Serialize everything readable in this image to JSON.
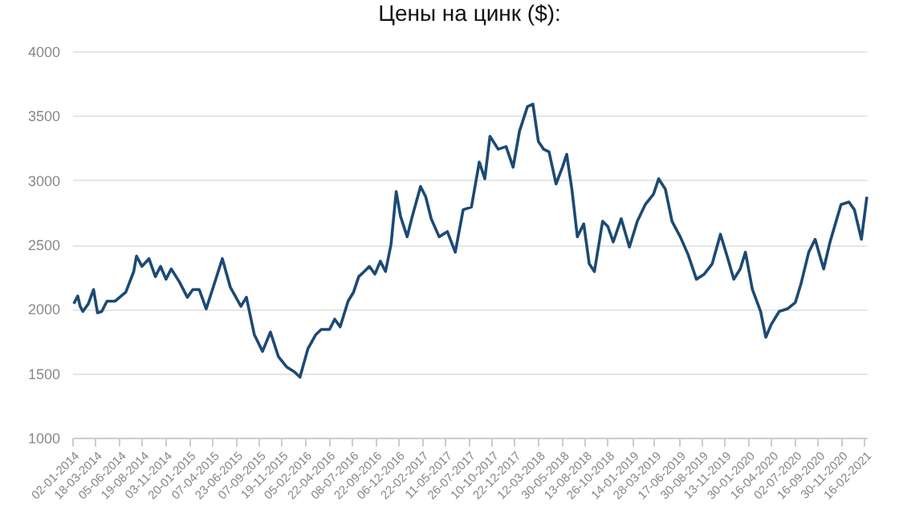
{
  "chart_data": {
    "type": "line",
    "title": "Цены на цинк ($):",
    "x": [
      "2014-01-07",
      "2014-01-20",
      "2014-01-28",
      "2014-02-06",
      "2014-02-24",
      "2014-03-13",
      "2014-03-26",
      "2014-04-09",
      "2014-04-26",
      "2014-05-23",
      "2014-06-27",
      "2014-07-23",
      "2014-08-01",
      "2014-08-19",
      "2014-09-11",
      "2014-10-02",
      "2014-10-19",
      "2014-11-06",
      "2014-11-23",
      "2014-12-20",
      "2015-01-15",
      "2015-02-02",
      "2015-02-23",
      "2015-03-18",
      "2015-04-13",
      "2015-05-10",
      "2015-06-05",
      "2015-07-10",
      "2015-07-28",
      "2015-08-23",
      "2015-09-19",
      "2015-10-15",
      "2015-11-10",
      "2015-12-07",
      "2016-01-02",
      "2016-01-20",
      "2016-02-15",
      "2016-03-12",
      "2016-03-30",
      "2016-04-26",
      "2016-05-13",
      "2016-05-31",
      "2016-06-26",
      "2016-07-14",
      "2016-07-31",
      "2016-08-18",
      "2016-09-04",
      "2016-09-22",
      "2016-10-10",
      "2016-10-27",
      "2016-11-14",
      "2016-12-01",
      "2016-12-15",
      "2017-01-06",
      "2017-01-23",
      "2017-02-19",
      "2017-03-08",
      "2017-03-26",
      "2017-04-21",
      "2017-05-18",
      "2017-06-13",
      "2017-07-09",
      "2017-08-05",
      "2017-08-31",
      "2017-09-18",
      "2017-10-05",
      "2017-11-01",
      "2017-11-27",
      "2017-12-20",
      "2018-01-10",
      "2018-02-05",
      "2018-02-23",
      "2018-03-13",
      "2018-03-30",
      "2018-04-17",
      "2018-05-10",
      "2018-05-31",
      "2018-06-14",
      "2018-07-01",
      "2018-07-19",
      "2018-08-09",
      "2018-08-27",
      "2018-09-13",
      "2018-10-10",
      "2018-10-27",
      "2018-11-14",
      "2018-12-10",
      "2019-01-06",
      "2019-02-01",
      "2019-02-27",
      "2019-03-26",
      "2019-04-12",
      "2019-05-04",
      "2019-05-26",
      "2019-06-22",
      "2019-07-18",
      "2019-08-14",
      "2019-09-09",
      "2019-10-05",
      "2019-11-01",
      "2019-11-24",
      "2019-12-15",
      "2020-01-05",
      "2020-01-22",
      "2020-02-14",
      "2020-03-12",
      "2020-03-29",
      "2020-04-16",
      "2020-05-12",
      "2020-06-08",
      "2020-07-04",
      "2020-07-22",
      "2020-08-17",
      "2020-09-07",
      "2020-10-05",
      "2020-10-26",
      "2020-12-01",
      "2020-12-27",
      "2021-01-14",
      "2021-02-06",
      "2021-02-24"
    ],
    "series": [
      {
        "color": "#1c4a74",
        "values": [
          2040,
          2100,
          2020,
          1980,
          2040,
          2150,
          1970,
          1980,
          2060,
          2060,
          2130,
          2290,
          2410,
          2330,
          2390,
          2250,
          2330,
          2230,
          2310,
          2210,
          2090,
          2150,
          2150,
          2000,
          2190,
          2390,
          2170,
          2020,
          2090,
          1800,
          1670,
          1820,
          1630,
          1550,
          1510,
          1470,
          1690,
          1800,
          1840,
          1840,
          1920,
          1860,
          2060,
          2130,
          2250,
          2290,
          2330,
          2270,
          2370,
          2290,
          2500,
          2910,
          2720,
          2560,
          2720,
          2950,
          2870,
          2700,
          2560,
          2600,
          2440,
          2770,
          2790,
          3140,
          3010,
          3340,
          3240,
          3260,
          3100,
          3380,
          3570,
          3590,
          3300,
          3240,
          3220,
          2970,
          3100,
          3200,
          2930,
          2560,
          2660,
          2350,
          2290,
          2680,
          2640,
          2520,
          2700,
          2480,
          2680,
          2810,
          2890,
          3010,
          2930,
          2680,
          2560,
          2420,
          2230,
          2270,
          2350,
          2580,
          2400,
          2230,
          2310,
          2440,
          2150,
          1980,
          1780,
          1880,
          1980,
          2000,
          2050,
          2190,
          2440,
          2540,
          2310,
          2520,
          2810,
          2830,
          2770,
          2540,
          2870
        ]
      }
    ],
    "xlim": [
      "2014-01-02",
      "2021-02-24"
    ],
    "xticks": [
      {
        "value": "2014-01-02",
        "label": "02-01-2014"
      },
      {
        "value": "2014-03-18",
        "label": "18-03-2014"
      },
      {
        "value": "2014-06-05",
        "label": "05-06-2014"
      },
      {
        "value": "2014-08-19",
        "label": "19-08-2014"
      },
      {
        "value": "2014-11-03",
        "label": "03-11-2014"
      },
      {
        "value": "2015-01-20",
        "label": "20-01-2015"
      },
      {
        "value": "2015-04-07",
        "label": "07-04-2015"
      },
      {
        "value": "2015-06-23",
        "label": "23-06-2015"
      },
      {
        "value": "2015-09-07",
        "label": "07-09-2015"
      },
      {
        "value": "2015-11-19",
        "label": "19-11-2015"
      },
      {
        "value": "2016-02-05",
        "label": "05-02-2016"
      },
      {
        "value": "2016-04-22",
        "label": "22-04-2016"
      },
      {
        "value": "2016-07-08",
        "label": "08-07-2016"
      },
      {
        "value": "2016-09-22",
        "label": "22-09-2016"
      },
      {
        "value": "2016-12-06",
        "label": "06-12-2016"
      },
      {
        "value": "2017-02-22",
        "label": "22-02-2017"
      },
      {
        "value": "2017-05-11",
        "label": "11-05-2017"
      },
      {
        "value": "2017-07-26",
        "label": "26-07-2017"
      },
      {
        "value": "2017-10-10",
        "label": "10-10-2017"
      },
      {
        "value": "2017-12-22",
        "label": "22-12-2017"
      },
      {
        "value": "2018-03-12",
        "label": "12-03-2018"
      },
      {
        "value": "2018-05-30",
        "label": "30-05-2018"
      },
      {
        "value": "2018-08-13",
        "label": "13-08-2018"
      },
      {
        "value": "2018-10-26",
        "label": "26-10-2018"
      },
      {
        "value": "2019-01-14",
        "label": "14-01-2019"
      },
      {
        "value": "2019-03-28",
        "label": "28-03-2019"
      },
      {
        "value": "2019-06-17",
        "label": "17-06-2019"
      },
      {
        "value": "2019-08-30",
        "label": "30-08-2019"
      },
      {
        "value": "2019-11-13",
        "label": "13-11-2019"
      },
      {
        "value": "2020-01-30",
        "label": "30-01-2020"
      },
      {
        "value": "2020-04-16",
        "label": "16-04-2020"
      },
      {
        "value": "2020-07-02",
        "label": "02-07-2020"
      },
      {
        "value": "2020-09-16",
        "label": "16-09-2020"
      },
      {
        "value": "2020-11-30",
        "label": "30-11-2020"
      },
      {
        "value": "2021-02-16",
        "label": "16-02-2021"
      }
    ],
    "ylim": [
      1000,
      4000
    ],
    "yticks": [
      1000,
      1500,
      2000,
      2500,
      3000,
      3500,
      4000
    ],
    "grid": "y",
    "legend": false
  }
}
